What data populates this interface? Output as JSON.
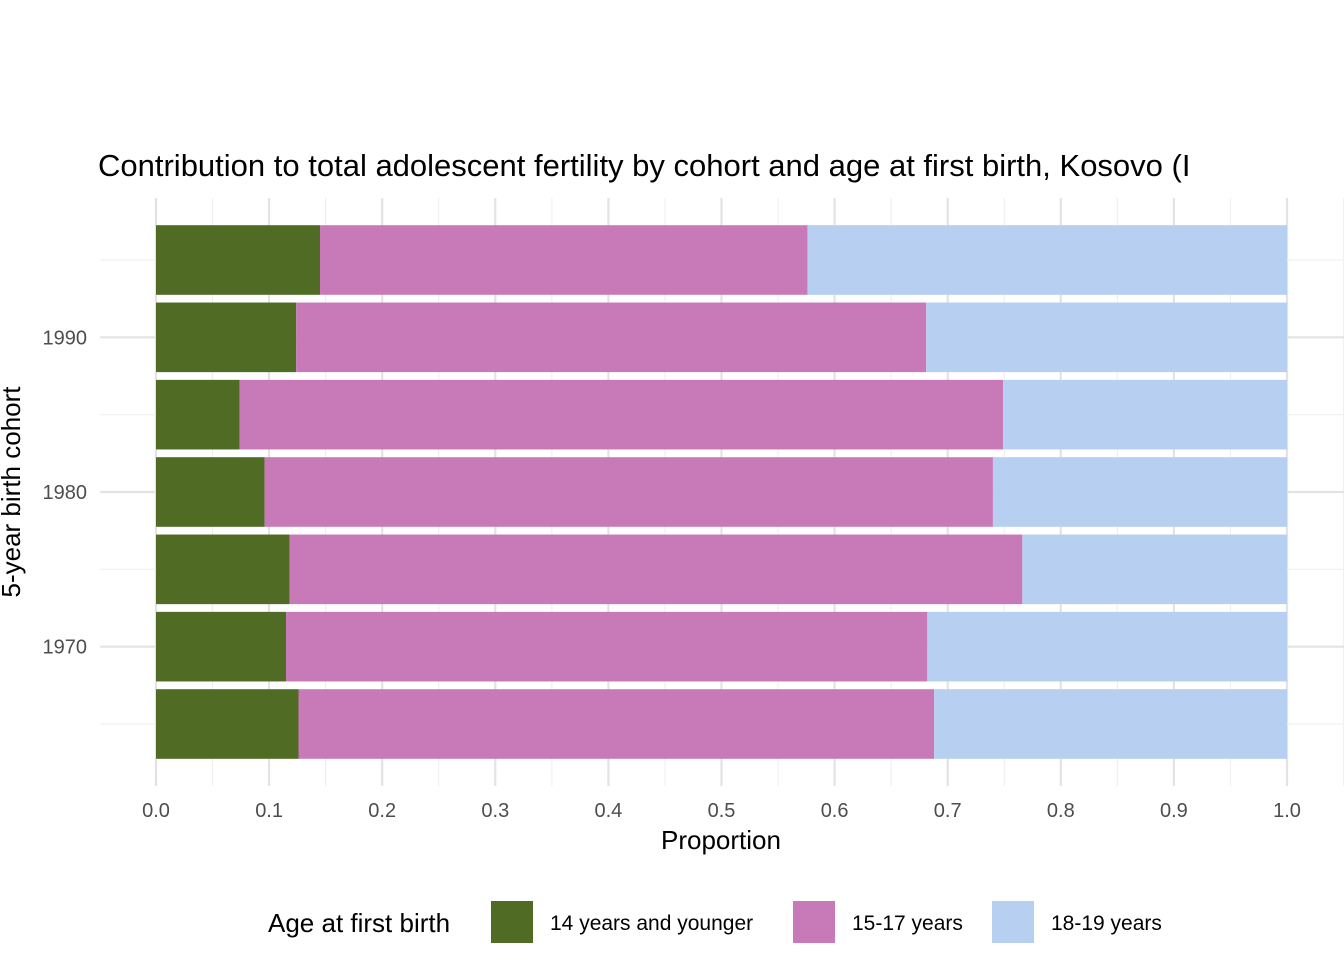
{
  "chart_data": {
    "type": "bar",
    "orientation": "horizontal",
    "stacked": true,
    "title": "Contribution to total adolescent fertility by cohort and age at first birth,  Kosovo (I",
    "xlabel": "Proportion",
    "ylabel": "5-year birth cohort",
    "xlim": [
      0,
      1
    ],
    "x_ticks": [
      "0.0",
      "0.1",
      "0.2",
      "0.3",
      "0.4",
      "0.5",
      "0.6",
      "0.7",
      "0.8",
      "0.9",
      "1.0"
    ],
    "y_ticks": [
      {
        "label": "1970",
        "value": 1970
      },
      {
        "label": "1980",
        "value": 1980
      },
      {
        "label": "1990",
        "value": 1990
      }
    ],
    "categories": [
      1965,
      1970,
      1975,
      1980,
      1985,
      1990,
      1995
    ],
    "series": [
      {
        "name": "14 years and younger",
        "color": "#4f6b24",
        "values": [
          0.126,
          0.115,
          0.118,
          0.096,
          0.074,
          0.124,
          0.145
        ]
      },
      {
        "name": "15-17 years",
        "color": "#c879b8",
        "values": [
          0.562,
          0.567,
          0.648,
          0.644,
          0.675,
          0.557,
          0.431
        ]
      },
      {
        "name": "18-19 years",
        "color": "#b7cff0",
        "values": [
          0.312,
          0.318,
          0.234,
          0.26,
          0.251,
          0.319,
          0.424
        ]
      }
    ],
    "legend": {
      "title": "Age at first birth",
      "position": "bottom"
    },
    "grid": true
  }
}
